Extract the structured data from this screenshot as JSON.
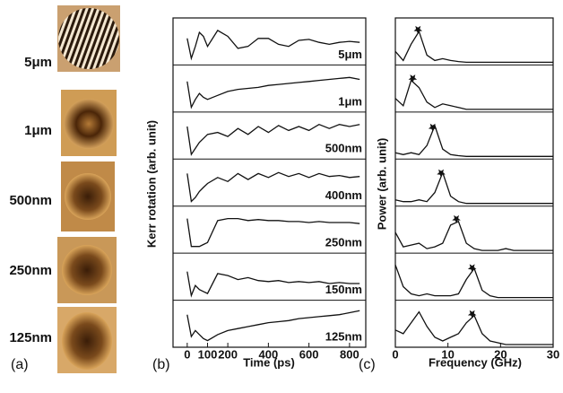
{
  "images": {
    "labels": [
      "5μm",
      "1μm",
      "500nm",
      "250nm",
      "125nm"
    ],
    "caption": "(a)"
  },
  "chart_data": [
    {
      "type": "line",
      "caption": "(b)",
      "y_label": "Kerr rotation (arb. unit)",
      "x_label": "Time (ps)",
      "xlim": [
        -70,
        880
      ],
      "xticks": [
        0,
        100,
        200,
        400,
        600,
        800
      ],
      "ylim": [
        -1,
        1
      ],
      "color": "#111111",
      "x": [
        0,
        20,
        40,
        60,
        80,
        100,
        150,
        200,
        250,
        300,
        350,
        400,
        450,
        500,
        550,
        600,
        650,
        700,
        750,
        800,
        850
      ],
      "series": [
        {
          "name": "5μm",
          "values": [
            0.2,
            -0.8,
            -0.2,
            0.5,
            0.3,
            -0.2,
            0.6,
            0.3,
            -0.3,
            -0.2,
            0.2,
            0.2,
            -0.1,
            -0.2,
            0.1,
            0.15,
            0,
            -0.1,
            0,
            0.05,
            0
          ]
        },
        {
          "name": "1μm",
          "values": [
            0.4,
            -0.9,
            -0.5,
            -0.2,
            -0.4,
            -0.5,
            -0.3,
            -0.1,
            0,
            0.05,
            0.1,
            0.2,
            0.25,
            0.3,
            0.35,
            0.4,
            0.45,
            0.5,
            0.55,
            0.6,
            0.5
          ]
        },
        {
          "name": "500nm",
          "values": [
            0.5,
            -0.9,
            -0.6,
            -0.3,
            -0.1,
            0.1,
            0.2,
            0,
            0.4,
            0.1,
            0.5,
            0.2,
            0.55,
            0.3,
            0.5,
            0.3,
            0.6,
            0.4,
            0.6,
            0.5,
            0.6
          ]
        },
        {
          "name": "400nm",
          "values": [
            0.5,
            -0.9,
            -0.7,
            -0.4,
            -0.2,
            0,
            0.3,
            0.1,
            0.5,
            0.2,
            0.5,
            0.3,
            0.55,
            0.35,
            0.5,
            0.3,
            0.5,
            0.35,
            0.4,
            0.3,
            0.35
          ]
        },
        {
          "name": "250nm",
          "values": [
            0.6,
            -0.8,
            -0.8,
            -0.8,
            -0.7,
            -0.6,
            0.5,
            0.6,
            0.6,
            0.5,
            0.55,
            0.5,
            0.5,
            0.45,
            0.45,
            0.4,
            0.45,
            0.4,
            0.4,
            0.4,
            0.35
          ]
        },
        {
          "name": "150nm",
          "values": [
            0.3,
            -0.9,
            -0.4,
            -0.6,
            -0.7,
            -0.8,
            0.2,
            0.1,
            -0.1,
            0,
            -0.15,
            -0.2,
            -0.15,
            -0.25,
            -0.2,
            -0.25,
            -0.2,
            -0.3,
            -0.25,
            -0.3,
            -0.3
          ]
        },
        {
          "name": "125nm",
          "values": [
            0.5,
            -0.6,
            -0.3,
            -0.5,
            -0.7,
            -0.8,
            -0.5,
            -0.3,
            -0.2,
            -0.1,
            0,
            0.1,
            0.15,
            0.2,
            0.3,
            0.35,
            0.4,
            0.45,
            0.5,
            0.6,
            0.7
          ]
        }
      ]
    },
    {
      "type": "line",
      "caption": "(c)",
      "y_label": "Power (arb. unit)",
      "x_label": "Frequency (GHz)",
      "xlim": [
        0,
        30
      ],
      "xticks": [
        0,
        10,
        20,
        30
      ],
      "ylim": [
        0,
        1.1
      ],
      "color": "#111111",
      "x": [
        0,
        1.5,
        3,
        4.5,
        6,
        7.5,
        9,
        10.5,
        12,
        13.5,
        15,
        16.5,
        18,
        19.5,
        21,
        22.5,
        24,
        25.5,
        27,
        28.5,
        30
      ],
      "series": [
        {
          "values": [
            0.3,
            0.05,
            0.5,
            0.85,
            0.2,
            0.05,
            0.1,
            0.05,
            0.02,
            0,
            0,
            0,
            0,
            0,
            0,
            0,
            0,
            0,
            0,
            0,
            0
          ],
          "peak": 4.3
        },
        {
          "values": [
            0.3,
            0.1,
            0.8,
            0.6,
            0.2,
            0.05,
            0.15,
            0.1,
            0.05,
            0,
            0,
            0,
            0,
            0,
            0,
            0,
            0,
            0,
            0,
            0,
            0
          ],
          "peak": 3.3
        },
        {
          "values": [
            0.1,
            0.05,
            0.1,
            0.05,
            0.3,
            0.85,
            0.2,
            0.05,
            0.02,
            0,
            0,
            0,
            0,
            0,
            0,
            0,
            0,
            0,
            0,
            0,
            0
          ],
          "peak": 7.1
        },
        {
          "values": [
            0.1,
            0.05,
            0.05,
            0.1,
            0.05,
            0.3,
            0.85,
            0.2,
            0.05,
            0,
            0,
            0,
            0,
            0,
            0,
            0,
            0,
            0,
            0,
            0,
            0
          ],
          "peak": 8.7
        },
        {
          "values": [
            0.5,
            0.1,
            0.15,
            0.2,
            0.05,
            0.1,
            0.2,
            0.7,
            0.8,
            0.2,
            0.05,
            0,
            0,
            0,
            0.05,
            0,
            0,
            0,
            0,
            0,
            0
          ],
          "peak": 11.6
        },
        {
          "values": [
            0.9,
            0.3,
            0.1,
            0.05,
            0.1,
            0.05,
            0.05,
            0.05,
            0.1,
            0.5,
            0.8,
            0.2,
            0.05,
            0,
            0,
            0,
            0,
            0,
            0,
            0,
            0
          ],
          "peak": 14.6
        },
        {
          "values": [
            0.4,
            0.3,
            0.6,
            0.9,
            0.5,
            0.2,
            0.1,
            0.2,
            0.3,
            0.6,
            0.8,
            0.3,
            0.1,
            0.05,
            0,
            0,
            0,
            0,
            0,
            0,
            0
          ],
          "peak": 14.6
        }
      ]
    }
  ]
}
